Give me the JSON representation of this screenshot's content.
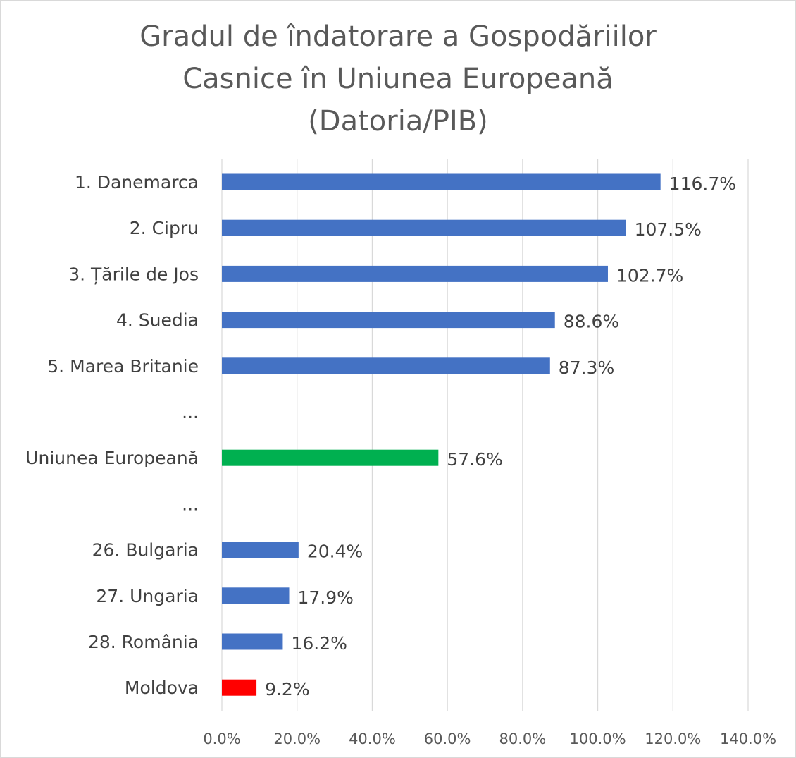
{
  "chart_data": {
    "type": "bar",
    "orientation": "horizontal",
    "title_lines": [
      "Gradul de îndatorare a Gospodăriilor",
      "Casnice în Uniunea Europeană",
      "(Datoria/PIB)"
    ],
    "categories": [
      "1. Danemarca",
      "2. Cipru",
      "3. Țările de Jos",
      "4. Suedia",
      "5. Marea Britanie",
      "...",
      "Uniunea Europeană",
      "...",
      "26. Bulgaria",
      "27. Ungaria",
      "28. România",
      "Moldova"
    ],
    "values": [
      116.7,
      107.5,
      102.7,
      88.6,
      87.3,
      null,
      57.6,
      null,
      20.4,
      17.9,
      16.2,
      9.2
    ],
    "data_labels": [
      "116.7%",
      "107.5%",
      "102.7%",
      "88.6%",
      "87.3%",
      "",
      "57.6%",
      "",
      "20.4%",
      "17.9%",
      "16.2%",
      "9.2%"
    ],
    "bar_colors": [
      "#4472c4",
      "#4472c4",
      "#4472c4",
      "#4472c4",
      "#4472c4",
      "",
      "#00b050",
      "",
      "#4472c4",
      "#4472c4",
      "#4472c4",
      "#ff0000"
    ],
    "xlim": [
      0,
      140
    ],
    "x_ticks": [
      0,
      20,
      40,
      60,
      80,
      100,
      120,
      140
    ],
    "x_tick_labels": [
      "0.0%",
      "20.0%",
      "40.0%",
      "60.0%",
      "80.0%",
      "100.0%",
      "120.0%",
      "140.0%"
    ],
    "grid": "vertical",
    "legend": "none"
  }
}
